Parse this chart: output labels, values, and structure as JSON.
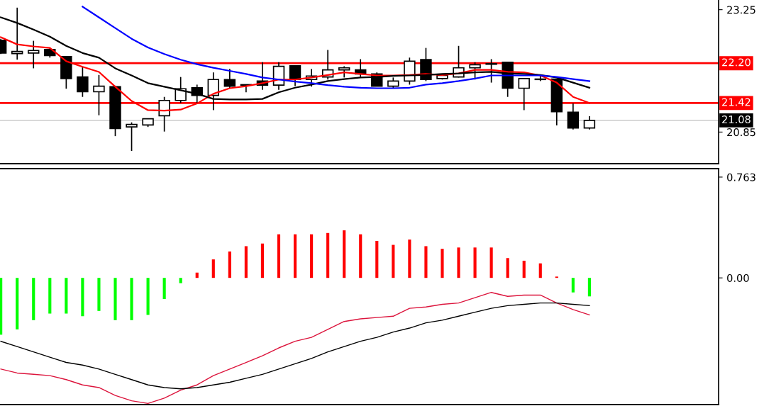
{
  "chart_data": [
    {
      "type": "candlestick",
      "categories": [
        null,
        null,
        null,
        null,
        null,
        null,
        null,
        null,
        null,
        null,
        null,
        null,
        null,
        null,
        null,
        null,
        null,
        null,
        null,
        null,
        null,
        null,
        null,
        null,
        null,
        null,
        null,
        null,
        null,
        null,
        null,
        null,
        null,
        null,
        null,
        null,
        null
      ],
      "ohlc": [
        [
          22.65,
          22.68,
          22.38,
          22.4
        ],
        [
          22.39,
          23.29,
          22.27,
          22.43
        ],
        [
          22.4,
          22.64,
          22.1,
          22.45
        ],
        [
          22.47,
          22.51,
          22.31,
          22.35
        ],
        [
          22.33,
          22.33,
          21.7,
          21.9
        ],
        [
          21.93,
          22.13,
          21.54,
          21.64
        ],
        [
          21.64,
          21.97,
          21.18,
          21.75
        ],
        [
          21.74,
          21.76,
          20.77,
          20.92
        ],
        [
          20.95,
          21.04,
          20.48,
          21.0
        ],
        [
          20.99,
          21.11,
          20.95,
          21.11
        ],
        [
          21.17,
          21.54,
          20.86,
          21.47
        ],
        [
          21.47,
          21.93,
          21.42,
          21.7
        ],
        [
          21.72,
          21.78,
          21.41,
          21.57
        ],
        [
          21.57,
          22.02,
          21.28,
          21.88
        ],
        [
          21.88,
          22.09,
          21.71,
          21.75
        ],
        [
          21.78,
          21.78,
          21.63,
          21.77
        ],
        [
          21.85,
          22.22,
          21.68,
          21.77
        ],
        [
          21.77,
          22.22,
          21.68,
          22.14
        ],
        [
          22.15,
          22.15,
          21.75,
          21.88
        ],
        [
          21.88,
          22.09,
          21.74,
          21.95
        ],
        [
          21.93,
          22.46,
          21.88,
          22.07
        ],
        [
          22.07,
          22.14,
          21.92,
          22.11
        ],
        [
          22.07,
          22.28,
          21.92,
          21.99
        ],
        [
          21.99,
          22.02,
          21.75,
          21.75
        ],
        [
          21.75,
          21.92,
          21.71,
          21.85
        ],
        [
          21.85,
          22.31,
          21.78,
          22.24
        ],
        [
          22.27,
          22.5,
          21.85,
          21.88
        ],
        [
          21.9,
          21.97,
          21.88,
          21.96
        ],
        [
          21.93,
          22.54,
          21.92,
          22.11
        ],
        [
          22.11,
          22.22,
          21.88,
          22.17
        ],
        [
          22.19,
          22.28,
          21.82,
          22.18
        ],
        [
          22.22,
          22.22,
          21.54,
          21.71
        ],
        [
          21.71,
          21.9,
          21.28,
          21.9
        ],
        [
          21.89,
          21.97,
          21.85,
          21.88
        ],
        [
          21.89,
          21.89,
          20.98,
          21.25
        ],
        [
          21.24,
          21.41,
          20.9,
          20.93
        ],
        [
          20.93,
          21.16,
          20.9,
          21.08
        ]
      ],
      "series": [
        {
          "type": "line",
          "color": "#ff0000",
          "values": [
            22.71,
            22.57,
            22.53,
            22.5,
            22.24,
            22.13,
            22.03,
            21.74,
            21.46,
            21.28,
            21.27,
            21.29,
            21.41,
            21.6,
            21.71,
            21.75,
            21.81,
            21.88,
            21.88,
            21.92,
            21.97,
            22.02,
            21.99,
            21.96,
            21.96,
            21.97,
            21.99,
            21.97,
            22.0,
            22.07,
            22.07,
            22.03,
            22.02,
            21.96,
            21.82,
            21.54,
            21.42
          ]
        },
        {
          "type": "line",
          "color": "#000000",
          "values": [
            23.1,
            22.99,
            22.86,
            22.72,
            22.54,
            22.4,
            22.31,
            22.1,
            21.96,
            21.81,
            21.74,
            21.67,
            21.6,
            21.5,
            21.49,
            21.49,
            21.5,
            21.63,
            21.72,
            21.78,
            21.85,
            21.89,
            21.92,
            21.93,
            21.95,
            21.96,
            21.97,
            21.99,
            22.0,
            22.02,
            22.03,
            22.0,
            21.99,
            21.97,
            21.92,
            21.82,
            21.72
          ]
        },
        {
          "type": "line",
          "color": "#0000ff",
          "values": [
            null,
            null,
            null,
            null,
            null,
            23.31,
            23.1,
            22.89,
            22.68,
            22.51,
            22.38,
            22.27,
            22.18,
            22.11,
            22.05,
            21.99,
            21.92,
            21.88,
            21.84,
            21.81,
            21.77,
            21.74,
            21.72,
            21.71,
            21.71,
            21.72,
            21.78,
            21.81,
            21.85,
            21.9,
            21.96,
            21.96,
            21.96,
            21.96,
            21.93,
            21.89,
            21.85
          ]
        }
      ],
      "ylim": [
        20.23,
        23.44
      ],
      "yticks": [
        23.25,
        20.85
      ],
      "ref_lines": [
        {
          "axis": "y",
          "value": 22.2,
          "label": "22.20",
          "color": "#ff0000"
        },
        {
          "axis": "y",
          "value": 21.42,
          "label": "21.42",
          "color": "#ff0000"
        },
        {
          "axis": "y",
          "value": 21.08,
          "label": "21.08",
          "color": "#c0c0c0"
        }
      ],
      "tick_labels": "y",
      "grid": false
    },
    {
      "type": "bar",
      "categories": [
        null,
        null,
        null,
        null,
        null,
        null,
        null,
        null,
        null,
        null,
        null,
        null,
        null,
        null,
        null,
        null,
        null,
        null,
        null,
        null,
        null,
        null,
        null,
        null,
        null,
        null,
        null,
        null,
        null,
        null,
        null,
        null,
        null,
        null,
        null,
        null,
        null
      ],
      "series": [
        {
          "type": "bar",
          "values": [
            -0.43,
            -0.39,
            -0.32,
            -0.27,
            -0.27,
            -0.29,
            -0.25,
            -0.32,
            -0.32,
            -0.28,
            -0.16,
            -0.04,
            0.04,
            0.14,
            0.2,
            0.24,
            0.26,
            0.33,
            0.33,
            0.33,
            0.34,
            0.36,
            0.33,
            0.28,
            0.25,
            0.29,
            0.24,
            0.22,
            0.23,
            0.23,
            0.23,
            0.15,
            0.13,
            0.11,
            0.01,
            -0.11,
            -0.14
          ],
          "colors": [
            "#00ff00",
            "#00ff00",
            "#00ff00",
            "#00ff00",
            "#00ff00",
            "#00ff00",
            "#00ff00",
            "#00ff00",
            "#00ff00",
            "#00ff00",
            "#00ff00",
            "#00ff00",
            "#ff0000",
            "#ff0000",
            "#ff0000",
            "#ff0000",
            "#ff0000",
            "#ff0000",
            "#ff0000",
            "#ff0000",
            "#ff0000",
            "#ff0000",
            "#ff0000",
            "#ff0000",
            "#ff0000",
            "#ff0000",
            "#ff0000",
            "#ff0000",
            "#ff0000",
            "#ff0000",
            "#ff0000",
            "#ff0000",
            "#ff0000",
            "#ff0000",
            "#ff0000",
            "#00ff00",
            "#00ff00"
          ]
        },
        {
          "type": "line",
          "color": "#dc143c",
          "values": [
            -0.69,
            -0.72,
            -0.73,
            -0.74,
            -0.77,
            -0.81,
            -0.83,
            -0.89,
            -0.93,
            -0.95,
            -0.91,
            -0.85,
            -0.81,
            -0.74,
            -0.69,
            -0.64,
            -0.59,
            -0.53,
            -0.48,
            -0.45,
            -0.39,
            -0.33,
            -0.31,
            -0.3,
            -0.29,
            -0.23,
            -0.22,
            -0.2,
            -0.19,
            -0.15,
            -0.11,
            -0.14,
            -0.13,
            -0.13,
            -0.19,
            -0.24,
            -0.28
          ]
        },
        {
          "type": "line",
          "color": "#000000",
          "values": [
            -0.48,
            -0.52,
            -0.56,
            -0.6,
            -0.64,
            -0.66,
            -0.69,
            -0.73,
            -0.77,
            -0.81,
            -0.83,
            -0.84,
            -0.83,
            -0.81,
            -0.79,
            -0.76,
            -0.73,
            -0.69,
            -0.65,
            -0.61,
            -0.56,
            -0.52,
            -0.48,
            -0.45,
            -0.41,
            -0.38,
            -0.34,
            -0.32,
            -0.29,
            -0.26,
            -0.23,
            -0.21,
            -0.2,
            -0.19,
            -0.19,
            -0.2,
            -0.21
          ]
        }
      ],
      "ylim": [
        -0.959,
        0.827
      ],
      "yticks": [
        0.763,
        {
          "value": 0,
          "label": "0.00"
        }
      ],
      "tick_labels": "y",
      "grid": false
    }
  ]
}
